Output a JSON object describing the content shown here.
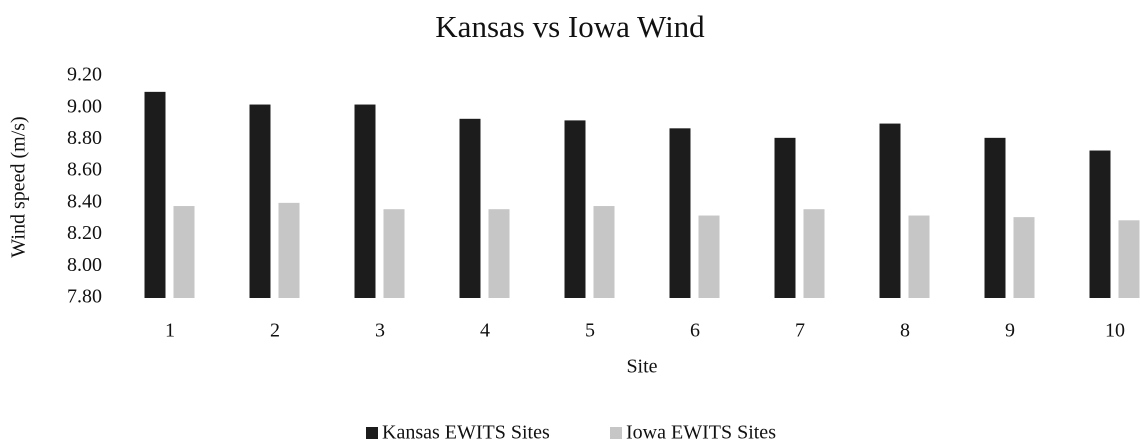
{
  "chart_data": {
    "type": "bar",
    "title": "Kansas vs Iowa Wind",
    "x_label": "Site",
    "y_label": "Wind speed (m/s)",
    "categories": [
      "1",
      "2",
      "3",
      "4",
      "5",
      "6",
      "7",
      "8",
      "9",
      "10"
    ],
    "series": [
      {
        "name": "Kansas EWITS Sites",
        "color": "#1c1c1c",
        "values": [
          9.1,
          9.02,
          9.02,
          8.93,
          8.92,
          8.87,
          8.81,
          8.9,
          8.81,
          8.73
        ]
      },
      {
        "name": "Iowa EWITS Sites",
        "color": "#c6c6c6",
        "values": [
          8.38,
          8.4,
          8.36,
          8.36,
          8.38,
          8.32,
          8.36,
          8.32,
          8.31,
          8.29
        ]
      }
    ],
    "ylim": [
      7.8,
      9.2
    ],
    "yticks": [
      {
        "value": 7.8,
        "label": "7.80"
      },
      {
        "value": 8.0,
        "label": "8.00"
      },
      {
        "value": 8.2,
        "label": "8.20"
      },
      {
        "value": 8.4,
        "label": "8.40"
      },
      {
        "value": 8.6,
        "label": "8.60"
      },
      {
        "value": 8.8,
        "label": "8.80"
      },
      {
        "value": 9.0,
        "label": "9.00"
      },
      {
        "value": 9.2,
        "label": "9.20"
      }
    ],
    "legend": "bottom",
    "grid": false
  }
}
